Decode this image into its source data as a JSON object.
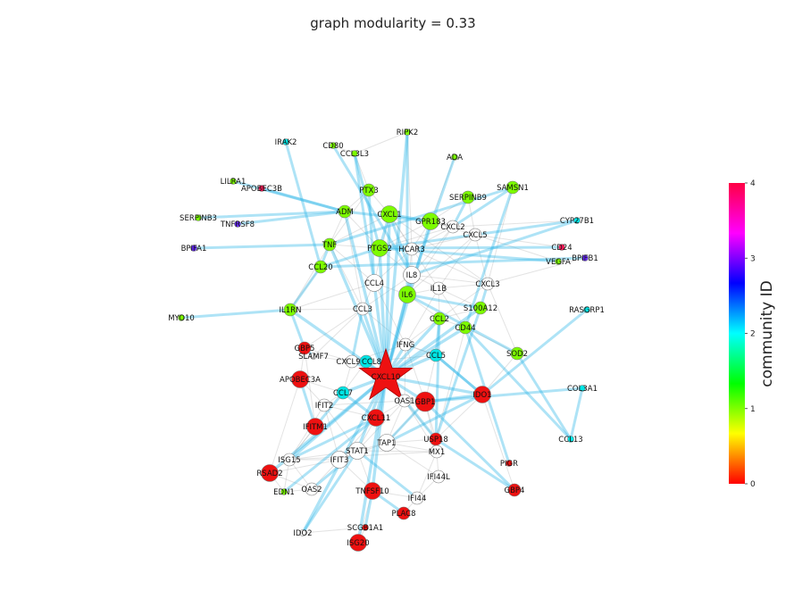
{
  "title": "graph modularity = 0.33",
  "colorbar": {
    "label": "community ID",
    "ticks": [
      "0",
      "1",
      "2",
      "3",
      "4"
    ],
    "stops": [
      "#ff0000",
      "#ffff00",
      "#00ff00",
      "#00ffff",
      "#0000ff",
      "#ff00ff",
      "#ff0044"
    ]
  },
  "community_colors": {
    "none": "#ffffff",
    "0": "#ee1111",
    "1": "#7cfc00",
    "2": "#00e5e5",
    "3": "#6a2cff",
    "4": "#ff1a5a"
  },
  "edge_colors": {
    "strong": "#29b6e8",
    "weak": "#9a9a9a"
  },
  "center_node": "CXCL10",
  "nodes": [
    {
      "id": "RIPK2",
      "c": "1",
      "s": "s"
    },
    {
      "id": "IRAK2",
      "c": "2",
      "s": "s"
    },
    {
      "id": "CD80",
      "c": "1",
      "s": "s"
    },
    {
      "id": "CCL3L3",
      "c": "1",
      "s": "s"
    },
    {
      "id": "ADA",
      "c": "1",
      "s": "s"
    },
    {
      "id": "LILRA1",
      "c": "1",
      "s": "s"
    },
    {
      "id": "APOBEC3B",
      "c": "4",
      "s": "s"
    },
    {
      "id": "PTX3",
      "c": "1",
      "s": "m"
    },
    {
      "id": "SAMSN1",
      "c": "1",
      "s": "m"
    },
    {
      "id": "SERPINB9",
      "c": "1",
      "s": "m"
    },
    {
      "id": "SERPINB3",
      "c": "1",
      "s": "s"
    },
    {
      "id": "TNFRSF8",
      "c": "3",
      "s": "s"
    },
    {
      "id": "ADM",
      "c": "1",
      "s": "m"
    },
    {
      "id": "CXCL1",
      "c": "1",
      "s": "l"
    },
    {
      "id": "GPR183",
      "c": "1",
      "s": "l"
    },
    {
      "id": "CXCL2",
      "c": "none",
      "s": "m"
    },
    {
      "id": "CYP27B1",
      "c": "2",
      "s": "s"
    },
    {
      "id": "CXCL5",
      "c": "none",
      "s": "m"
    },
    {
      "id": "CD24",
      "c": "4",
      "s": "s"
    },
    {
      "id": "BPIFA1",
      "c": "3",
      "s": "s"
    },
    {
      "id": "TNF",
      "c": "1",
      "s": "m"
    },
    {
      "id": "PTGS2",
      "c": "1",
      "s": "l"
    },
    {
      "id": "HCAR3",
      "c": "none",
      "s": "m"
    },
    {
      "id": "VEGFA",
      "c": "1",
      "s": "s"
    },
    {
      "id": "BPIFB1",
      "c": "3",
      "s": "s"
    },
    {
      "id": "CCL20",
      "c": "1",
      "s": "m"
    },
    {
      "id": "IL8",
      "c": "none",
      "s": "l"
    },
    {
      "id": "CCL4",
      "c": "none",
      "s": "l"
    },
    {
      "id": "CXCL3",
      "c": "none",
      "s": "m"
    },
    {
      "id": "IL1B",
      "c": "none",
      "s": "m"
    },
    {
      "id": "IL6",
      "c": "1",
      "s": "l"
    },
    {
      "id": "MYO10",
      "c": "1",
      "s": "s"
    },
    {
      "id": "IL1RN",
      "c": "1",
      "s": "m"
    },
    {
      "id": "CCL3",
      "c": "none",
      "s": "m"
    },
    {
      "id": "S100A12",
      "c": "1",
      "s": "m"
    },
    {
      "id": "RASGRP1",
      "c": "2",
      "s": "s"
    },
    {
      "id": "CCL2",
      "c": "1",
      "s": "m"
    },
    {
      "id": "CD44",
      "c": "1",
      "s": "m"
    },
    {
      "id": "IFNG",
      "c": "none",
      "s": "m"
    },
    {
      "id": "GBP5",
      "c": "0",
      "s": "m"
    },
    {
      "id": "SLAMF7",
      "c": "none",
      "s": "s"
    },
    {
      "id": "SOD2",
      "c": "1",
      "s": "m"
    },
    {
      "id": "CXCL9",
      "c": "none",
      "s": "m"
    },
    {
      "id": "CCL8",
      "c": "2",
      "s": "m"
    },
    {
      "id": "CCL5",
      "c": "2",
      "s": "m"
    },
    {
      "id": "APOBEC3A",
      "c": "0",
      "s": "l"
    },
    {
      "id": "CXCL10",
      "c": "0",
      "s": "star"
    },
    {
      "id": "COL3A1",
      "c": "2",
      "s": "s"
    },
    {
      "id": "IDO1",
      "c": "0",
      "s": "l"
    },
    {
      "id": "CCL7",
      "c": "2",
      "s": "m"
    },
    {
      "id": "IFIT2",
      "c": "none",
      "s": "m"
    },
    {
      "id": "OAS1",
      "c": "none",
      "s": "m"
    },
    {
      "id": "GBP1",
      "c": "0",
      "s": "xl"
    },
    {
      "id": "CXCL11",
      "c": "0",
      "s": "l"
    },
    {
      "id": "IFITM1",
      "c": "0",
      "s": "l"
    },
    {
      "id": "CCL13",
      "c": "2",
      "s": "s"
    },
    {
      "id": "TAP1",
      "c": "none",
      "s": "l"
    },
    {
      "id": "USP18",
      "c": "0",
      "s": "m"
    },
    {
      "id": "STAT1",
      "c": "none",
      "s": "l"
    },
    {
      "id": "MX1",
      "c": "none",
      "s": "m"
    },
    {
      "id": "ISG15",
      "c": "none",
      "s": "m"
    },
    {
      "id": "IFIT3",
      "c": "none",
      "s": "l"
    },
    {
      "id": "PIGR",
      "c": "0",
      "s": "s"
    },
    {
      "id": "RSAD2",
      "c": "0",
      "s": "l"
    },
    {
      "id": "IFI44L",
      "c": "none",
      "s": "m"
    },
    {
      "id": "EDN1",
      "c": "1",
      "s": "s"
    },
    {
      "id": "OAS2",
      "c": "none",
      "s": "m"
    },
    {
      "id": "TNFSF10",
      "c": "0",
      "s": "l"
    },
    {
      "id": "GBP4",
      "c": "0",
      "s": "m"
    },
    {
      "id": "IFI44",
      "c": "none",
      "s": "m"
    },
    {
      "id": "PLAC8",
      "c": "0",
      "s": "m"
    },
    {
      "id": "SCGB1A1",
      "c": "0",
      "s": "s"
    },
    {
      "id": "IDO2",
      "c": "none",
      "s": "s"
    },
    {
      "id": "ISG20",
      "c": "0",
      "s": "l"
    }
  ],
  "edges_strong": [
    [
      "CXCL10",
      "IL6"
    ],
    [
      "CXCL10",
      "IL8"
    ],
    [
      "CXCL10",
      "CCL4"
    ],
    [
      "CXCL10",
      "GBP1"
    ],
    [
      "CXCL10",
      "IDO1"
    ],
    [
      "CXCL10",
      "CCL5"
    ],
    [
      "CXCL10",
      "CXCL9"
    ],
    [
      "CXCL10",
      "CCL8"
    ],
    [
      "CXCL10",
      "CCL7"
    ],
    [
      "CXCL10",
      "CXCL11"
    ],
    [
      "CXCL10",
      "IFNG"
    ],
    [
      "CXCL10",
      "STAT1"
    ],
    [
      "CXCL10",
      "TNFSF10"
    ],
    [
      "CXCL10",
      "CCL2"
    ],
    [
      "CXCL10",
      "ADM"
    ],
    [
      "CXCL10",
      "TNF"
    ],
    [
      "CXCL10",
      "IL1RN"
    ],
    [
      "CXCL10",
      "CCL3"
    ],
    [
      "CXCL10",
      "ISG15"
    ],
    [
      "CXCL10",
      "PTGS2"
    ],
    [
      "CXCL10",
      "GPR183"
    ],
    [
      "CXCL10",
      "CD44"
    ],
    [
      "CXCL10",
      "USP18"
    ],
    [
      "CXCL10",
      "RIPK2"
    ],
    [
      "CXCL10",
      "CXCL1"
    ],
    [
      "CXCL10",
      "IDO2"
    ],
    [
      "CXCL10",
      "ISG20"
    ],
    [
      "CXCL10",
      "RSAD2"
    ],
    [
      "CXCL10",
      "S100A12"
    ],
    [
      "ADM",
      "SERPINB3"
    ],
    [
      "ADM",
      "TNFRSF8"
    ],
    [
      "ADM",
      "APOBEC3B"
    ],
    [
      "ADM",
      "LILRA1"
    ],
    [
      "TNF",
      "BPIFA1"
    ],
    [
      "TNF",
      "SAMSN1"
    ],
    [
      "TNF",
      "CCL20"
    ],
    [
      "IL1RN",
      "MYO10"
    ],
    [
      "IL1RN",
      "CCL20"
    ],
    [
      "IL1RN",
      "GBP5"
    ],
    [
      "CCL20",
      "BPIFB1"
    ],
    [
      "CCL20",
      "PTGS2"
    ],
    [
      "CCL20",
      "IRAK2"
    ],
    [
      "PTGS2",
      "CD24"
    ],
    [
      "PTGS2",
      "VEGFA"
    ],
    [
      "PTGS2",
      "CYP27B1"
    ],
    [
      "PTGS2",
      "CXCL1"
    ],
    [
      "PTGS2",
      "CCL3L3"
    ],
    [
      "IL8",
      "CD80"
    ],
    [
      "IL8",
      "CXCL1"
    ],
    [
      "IL8",
      "CYP27B1"
    ],
    [
      "IL6",
      "RIPK2"
    ],
    [
      "IL6",
      "SOD2"
    ],
    [
      "IL6",
      "S100A12"
    ],
    [
      "IL6",
      "ADA"
    ],
    [
      "CCL4",
      "CCL3L3"
    ],
    [
      "CCL4",
      "PTX3"
    ],
    [
      "CD44",
      "PIGR"
    ],
    [
      "CD44",
      "SAMSN1"
    ],
    [
      "CD44",
      "CCL13"
    ],
    [
      "GBP1",
      "COL3A1"
    ],
    [
      "GBP1",
      "GBP4"
    ],
    [
      "GBP1",
      "IDO1"
    ],
    [
      "GBP1",
      "TAP1"
    ],
    [
      "CCL13",
      "COL3A1"
    ],
    [
      "CCL13",
      "SOD2"
    ],
    [
      "IDO1",
      "RASGRP1"
    ],
    [
      "IDO1",
      "CCL5"
    ],
    [
      "IDO1",
      "TAP1"
    ],
    [
      "CCL5",
      "IDO1"
    ],
    [
      "CCL5",
      "CCL2"
    ],
    [
      "USP18",
      "S100A12"
    ],
    [
      "USP18",
      "CCL2"
    ],
    [
      "USP18",
      "GBP4"
    ],
    [
      "STAT1",
      "IFI44"
    ],
    [
      "STAT1",
      "OAS2"
    ],
    [
      "STAT1",
      "IDO2"
    ],
    [
      "CXCL11",
      "CCL7"
    ],
    [
      "CXCL11",
      "ISG15"
    ],
    [
      "CXCL11",
      "EDN1"
    ],
    [
      "IFITM1",
      "APOBEC3A"
    ],
    [
      "IFITM1",
      "CCL7"
    ],
    [
      "TNFSF10",
      "SCGB1A1"
    ],
    [
      "TNFSF10",
      "PLAC8"
    ],
    [
      "GPR183",
      "CXCL1"
    ],
    [
      "GPR183",
      "ADM"
    ],
    [
      "SERPINB9",
      "CXCL2"
    ],
    [
      "CXCL2",
      "SAMSN1"
    ],
    [
      "S100A12",
      "CXCL3"
    ],
    [
      "CXCL9",
      "CCL3"
    ],
    [
      "SLAMF7",
      "GBP5"
    ]
  ],
  "edges_weak": [
    [
      "IL8",
      "IL1B"
    ],
    [
      "IL8",
      "CXCL3"
    ],
    [
      "IL8",
      "CXCL2"
    ],
    [
      "IL8",
      "HCAR3"
    ],
    [
      "IL8",
      "PTGS2"
    ],
    [
      "IL8",
      "CCL3"
    ],
    [
      "IL1B",
      "CXCL3"
    ],
    [
      "IL1B",
      "CXCL5"
    ],
    [
      "IL1B",
      "CCL2"
    ],
    [
      "IL1B",
      "S100A12"
    ],
    [
      "IL1B",
      "CD44"
    ],
    [
      "IL1B",
      "IFNG"
    ],
    [
      "IL6",
      "IL1B"
    ],
    [
      "IL6",
      "CCL4"
    ],
    [
      "IL6",
      "HCAR3"
    ],
    [
      "IL6",
      "CXCL2"
    ],
    [
      "IL6",
      "CXCL5"
    ],
    [
      "IL6",
      "CCL2"
    ],
    [
      "CCL4",
      "CCL3"
    ],
    [
      "CCL4",
      "IL1RN"
    ],
    [
      "CCL4",
      "TNF"
    ],
    [
      "CCL4",
      "HCAR3"
    ],
    [
      "CCL4",
      "CXCL1"
    ],
    [
      "CCL4",
      "IFNG"
    ],
    [
      "CCL3",
      "IFNG"
    ],
    [
      "CCL3",
      "GBP5"
    ],
    [
      "CCL3",
      "SLAMF7"
    ],
    [
      "CCL3",
      "TNF"
    ],
    [
      "CCL3",
      "ADM"
    ],
    [
      "PTGS2",
      "HCAR3"
    ],
    [
      "PTGS2",
      "GPR183"
    ],
    [
      "PTGS2",
      "CXCL2"
    ],
    [
      "PTGS2",
      "TNF"
    ],
    [
      "PTGS2",
      "ADM"
    ],
    [
      "HCAR3",
      "CXCL2"
    ],
    [
      "HCAR3",
      "CXCL5"
    ],
    [
      "HCAR3",
      "CXCL3"
    ],
    [
      "HCAR3",
      "GPR183"
    ],
    [
      "HCAR3",
      "CXCL1"
    ],
    [
      "CXCL1",
      "CXCL2"
    ],
    [
      "CXCL1",
      "CXCL3"
    ],
    [
      "CXCL1",
      "PTX3"
    ],
    [
      "CXCL1",
      "TNF"
    ],
    [
      "CXCL1",
      "IL1B"
    ],
    [
      "GPR183",
      "SERPINB9"
    ],
    [
      "GPR183",
      "CXCL5"
    ],
    [
      "CXCL5",
      "CXCL3"
    ],
    [
      "CXCL3",
      "CCL2"
    ],
    [
      "CXCL3",
      "SOD2"
    ],
    [
      "STAT1",
      "TAP1"
    ],
    [
      "STAT1",
      "MX1"
    ],
    [
      "STAT1",
      "IFIT3"
    ],
    [
      "STAT1",
      "ISG15"
    ],
    [
      "STAT1",
      "IFIT2"
    ],
    [
      "STAT1",
      "OAS1"
    ],
    [
      "TAP1",
      "MX1"
    ],
    [
      "TAP1",
      "OAS1"
    ],
    [
      "TAP1",
      "IFIT3"
    ],
    [
      "TAP1",
      "GBP1"
    ],
    [
      "TAP1",
      "USP18"
    ],
    [
      "TAP1",
      "IFI44L"
    ],
    [
      "MX1",
      "IFI44L"
    ],
    [
      "MX1",
      "OAS1"
    ],
    [
      "MX1",
      "USP18"
    ],
    [
      "MX1",
      "IFI44"
    ],
    [
      "MX1",
      "ISG15"
    ],
    [
      "ISG15",
      "IFIT3"
    ],
    [
      "ISG15",
      "OAS2"
    ],
    [
      "ISG15",
      "RSAD2"
    ],
    [
      "ISG15",
      "IFIT2"
    ],
    [
      "ISG15",
      "IFITM1"
    ],
    [
      "IFIT3",
      "OAS2"
    ],
    [
      "IFIT3",
      "IFIT2"
    ],
    [
      "IFIT3",
      "RSAD2"
    ],
    [
      "IFIT3",
      "CXCL11"
    ],
    [
      "IFIT2",
      "CCL7"
    ],
    [
      "IFIT2",
      "OAS1"
    ],
    [
      "IFIT2",
      "CXCL11"
    ],
    [
      "IFIT2",
      "APOBEC3A"
    ],
    [
      "OAS1",
      "GBP1"
    ],
    [
      "OAS1",
      "IFNG"
    ],
    [
      "OAS1",
      "USP18"
    ],
    [
      "OAS2",
      "RSAD2"
    ],
    [
      "OAS2",
      "EDN1"
    ],
    [
      "IFI44",
      "IFI44L"
    ],
    [
      "IFI44",
      "TNFSF10"
    ],
    [
      "IFI44",
      "PLAC8"
    ],
    [
      "CXCL9",
      "CCL8"
    ],
    [
      "CXCL9",
      "IFNG"
    ],
    [
      "CXCL9",
      "CCL7"
    ],
    [
      "CXCL9",
      "SLAMF7"
    ],
    [
      "CXCL9",
      "GBP5"
    ],
    [
      "CCL8",
      "CCL5"
    ],
    [
      "CCL8",
      "CCL7"
    ],
    [
      "CCL5",
      "IFNG"
    ],
    [
      "CCL5",
      "GBP1"
    ],
    [
      "GBP5",
      "APOBEC3A"
    ],
    [
      "GBP5",
      "IFITM1"
    ],
    [
      "APOBEC3A",
      "CCL7"
    ],
    [
      "APOBEC3A",
      "RSAD2"
    ],
    [
      "IDO1",
      "USP18"
    ],
    [
      "IDO1",
      "SOD2"
    ],
    [
      "IDO1",
      "GBP4"
    ],
    [
      "TNFSF10",
      "ISG20"
    ],
    [
      "TNFSF10",
      "STAT1"
    ],
    [
      "TNFSF10",
      "IFIT3"
    ],
    [
      "SCGB1A1",
      "IDO2"
    ],
    [
      "SCGB1A1",
      "ISG20"
    ],
    [
      "IL1RN",
      "TNF"
    ],
    [
      "IL1RN",
      "CCL20"
    ],
    [
      "IL1RN",
      "CCL3"
    ],
    [
      "TNF",
      "ADM"
    ],
    [
      "TNF",
      "PTX3"
    ],
    [
      "CCL2",
      "CD44"
    ],
    [
      "CCL2",
      "S100A12"
    ],
    [
      "CCL2",
      "IFNG"
    ],
    [
      "CD44",
      "SOD2"
    ],
    [
      "CD44",
      "USP18"
    ],
    [
      "PTX3",
      "ADM"
    ],
    [
      "PTX3",
      "CCL3L3"
    ],
    [
      "CD80",
      "CCL3L3"
    ],
    [
      "CCL3L3",
      "RIPK2"
    ],
    [
      "RIPK2",
      "HCAR3"
    ],
    [
      "ADA",
      "GPR183"
    ],
    [
      "SERPINB9",
      "CXCL5"
    ],
    [
      "SAMSN1",
      "CXCL3"
    ],
    [
      "GBP1",
      "USP18"
    ],
    [
      "GBP1",
      "MX1"
    ],
    [
      "CXCL11",
      "STAT1"
    ],
    [
      "CXCL11",
      "OAS1"
    ],
    [
      "IFITM1",
      "ISG15"
    ],
    [
      "RSAD2",
      "EDN1"
    ],
    [
      "EDN1",
      "ISG15"
    ],
    [
      "IFNG",
      "GBP1"
    ],
    [
      "IFNG",
      "CCL5"
    ],
    [
      "CXCL5",
      "CD24"
    ],
    [
      "CXCL5",
      "VEGFA"
    ],
    [
      "CXCL3",
      "BPIFB1"
    ],
    [
      "CXCL2",
      "CYP27B1"
    ]
  ]
}
